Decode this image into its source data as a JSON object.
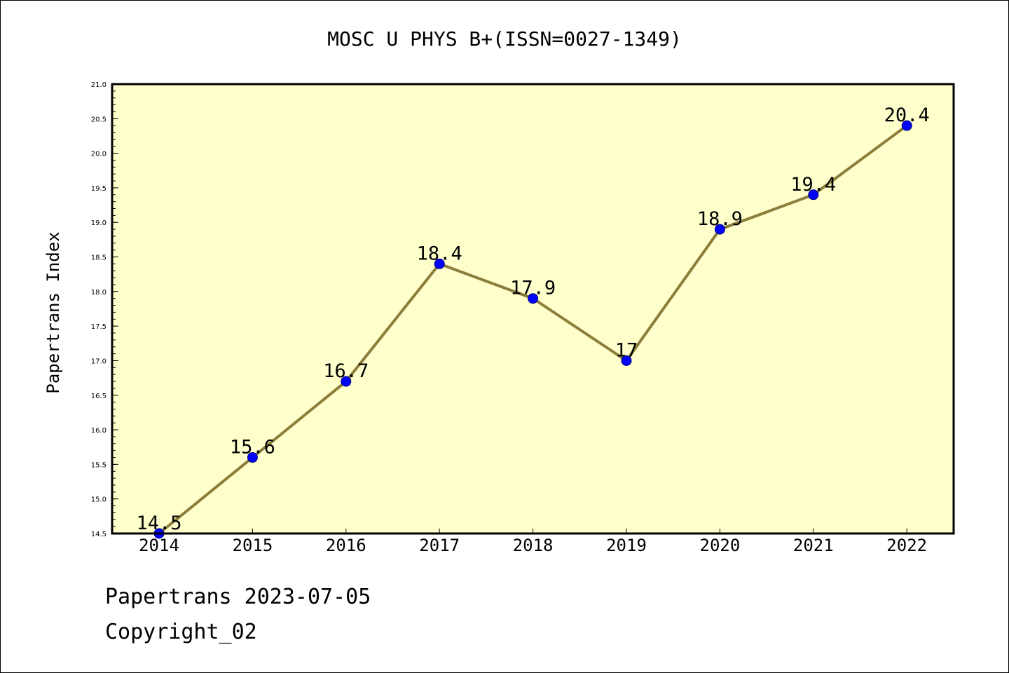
{
  "page": {
    "footer_date": "Papertrans 2023-07-05",
    "footer_copyright": "Copyright_02"
  },
  "colors": {
    "plot_background": "#ffffcc",
    "line": "#8b7d3a",
    "marker_fill": "#0000ff",
    "marker_edge": "#000080",
    "axis": "#000000"
  },
  "chart_data": {
    "type": "line",
    "title": "MOSC U PHYS B+(ISSN=0027-1349)",
    "xlabel": "",
    "ylabel": "Papertrans Index",
    "categories": [
      "2014",
      "2015",
      "2016",
      "2017",
      "2018",
      "2019",
      "2020",
      "2021",
      "2022"
    ],
    "series": [
      {
        "values": [
          14.5,
          15.6,
          16.7,
          18.4,
          17.9,
          17.0,
          18.9,
          19.4,
          20.4
        ],
        "labels": [
          "14.5",
          "15.6",
          "16.7",
          "18.4",
          "17.9",
          "17",
          "18.9",
          "19.4",
          "20.4"
        ]
      }
    ],
    "ylim": [
      14.5,
      21.0
    ],
    "yticks": [
      "14.5",
      "15.0",
      "15.5",
      "16.0",
      "16.5",
      "17.0",
      "17.5",
      "18.0",
      "18.5",
      "19.0",
      "19.5",
      "20.0",
      "20.5",
      "21.0"
    ],
    "grid": false,
    "legend": "none"
  }
}
